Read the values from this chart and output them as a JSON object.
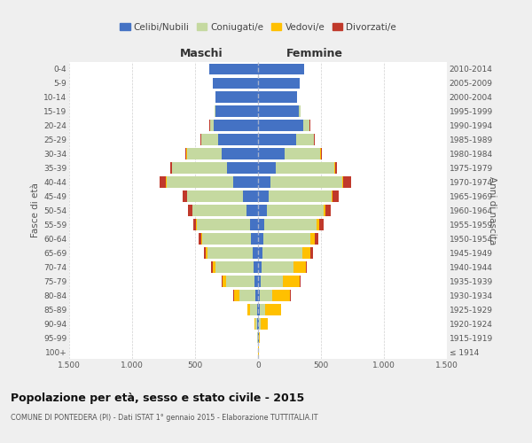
{
  "age_groups": [
    "100+",
    "95-99",
    "90-94",
    "85-89",
    "80-84",
    "75-79",
    "70-74",
    "65-69",
    "60-64",
    "55-59",
    "50-54",
    "45-49",
    "40-44",
    "35-39",
    "30-34",
    "25-29",
    "20-24",
    "15-19",
    "10-14",
    "5-9",
    "0-4"
  ],
  "birth_years": [
    "≤ 1914",
    "1915-1919",
    "1920-1924",
    "1925-1929",
    "1930-1934",
    "1935-1939",
    "1940-1944",
    "1945-1949",
    "1950-1954",
    "1955-1959",
    "1960-1964",
    "1965-1969",
    "1970-1974",
    "1975-1979",
    "1980-1984",
    "1985-1989",
    "1990-1994",
    "1995-1999",
    "2000-2004",
    "2005-2009",
    "2010-2014"
  ],
  "male_celibe": [
    2,
    3,
    5,
    10,
    20,
    30,
    35,
    40,
    55,
    65,
    90,
    120,
    200,
    250,
    290,
    320,
    350,
    340,
    340,
    360,
    390
  ],
  "male_coniugato": [
    1,
    3,
    15,
    55,
    125,
    225,
    305,
    360,
    390,
    420,
    430,
    440,
    525,
    430,
    275,
    130,
    30,
    5,
    0,
    0,
    0
  ],
  "male_vedovo": [
    0,
    1,
    8,
    20,
    45,
    30,
    22,
    14,
    9,
    5,
    3,
    2,
    5,
    2,
    2,
    2,
    1,
    0,
    0,
    0,
    0
  ],
  "male_divorziato": [
    0,
    0,
    1,
    2,
    5,
    5,
    14,
    18,
    20,
    25,
    35,
    35,
    50,
    15,
    10,
    5,
    3,
    0,
    0,
    0,
    0
  ],
  "female_nubile": [
    2,
    4,
    8,
    12,
    15,
    22,
    28,
    32,
    40,
    50,
    68,
    88,
    100,
    140,
    210,
    300,
    360,
    325,
    310,
    330,
    365
  ],
  "female_coniugata": [
    0,
    2,
    12,
    42,
    95,
    175,
    255,
    320,
    375,
    415,
    450,
    495,
    570,
    465,
    285,
    145,
    48,
    10,
    0,
    0,
    0
  ],
  "female_vedova": [
    2,
    8,
    55,
    128,
    145,
    136,
    96,
    66,
    38,
    23,
    14,
    9,
    9,
    5,
    3,
    2,
    1,
    0,
    0,
    0,
    0
  ],
  "female_divorziata": [
    0,
    0,
    2,
    3,
    5,
    7,
    10,
    18,
    24,
    33,
    47,
    52,
    62,
    18,
    9,
    5,
    3,
    0,
    0,
    0,
    0
  ],
  "color_celibe": "#4472c4",
  "color_coniugato": "#c5d9a0",
  "color_vedovo": "#ffc000",
  "color_divorziato": "#c0392b",
  "title": "Popolazione per età, sesso e stato civile - 2015",
  "subtitle": "COMUNE DI PONTEDERA (PI) - Dati ISTAT 1° gennaio 2015 - Elaborazione TUTTITALIA.IT",
  "label_maschi": "Maschi",
  "label_femmine": "Femmine",
  "ylabel_left": "Fasce di età",
  "ylabel_right": "Anni di nascita",
  "xlim": 1500,
  "bg_color": "#efefef",
  "plot_bg_color": "#ffffff",
  "grid_color": "#cccccc",
  "legend_labels": [
    "Celibi/Nubili",
    "Coniugati/e",
    "Vedovi/e",
    "Divorzati/e"
  ]
}
